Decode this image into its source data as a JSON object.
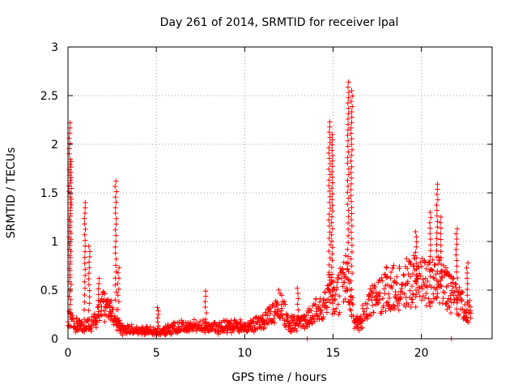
{
  "chart_data": {
    "type": "scatter",
    "title": "Day 261 of 2014, SRMTID for receiver lpal",
    "xlabel": "GPS time / hours",
    "ylabel": "SRMTID / TECUs",
    "xlim": [
      0,
      24
    ],
    "ylim": [
      0,
      3
    ],
    "xticks": [
      0,
      5,
      10,
      15,
      20
    ],
    "xtick_labels": [
      "0",
      "5",
      "10",
      "15",
      "20"
    ],
    "yticks": [
      0,
      0.5,
      1,
      1.5,
      2,
      2.5,
      3
    ],
    "ytick_labels": [
      "0",
      "0.5",
      "1",
      "1.5",
      "2",
      "2.5",
      "3"
    ],
    "grid": true,
    "marker": "+",
    "color": "#ff0000",
    "series": [
      {
        "name": "SRMTID",
        "description": "envelope of dense per-satellite samples",
        "baseline": {
          "x": [
            0,
            0.3,
            0.6,
            1.0,
            1.5,
            2.0,
            2.5,
            3.0,
            3.5,
            4.0,
            4.5,
            5.0,
            5.5,
            6.0,
            6.5,
            7.0,
            7.5,
            8.0,
            8.5,
            9.0,
            9.5,
            10.0,
            10.5,
            11.0,
            11.5,
            12.0,
            12.5,
            13.0,
            13.5,
            14.0,
            14.5,
            14.8,
            15.0,
            15.3,
            15.6,
            15.9,
            16.2,
            16.5,
            17.0,
            17.5,
            18.0,
            18.5,
            19.0,
            19.5,
            20.0,
            20.5,
            21.0,
            21.5,
            22.0,
            22.5,
            22.8
          ],
          "y": [
            0.22,
            0.16,
            0.14,
            0.13,
            0.18,
            0.35,
            0.25,
            0.1,
            0.09,
            0.08,
            0.08,
            0.07,
            0.09,
            0.11,
            0.13,
            0.12,
            0.14,
            0.12,
            0.11,
            0.12,
            0.13,
            0.12,
            0.15,
            0.18,
            0.25,
            0.38,
            0.15,
            0.16,
            0.2,
            0.28,
            0.32,
            0.55,
            0.4,
            0.45,
            0.6,
            0.55,
            0.18,
            0.15,
            0.35,
            0.42,
            0.5,
            0.55,
            0.55,
            0.6,
            0.58,
            0.55,
            0.6,
            0.5,
            0.4,
            0.3,
            0.25
          ]
        },
        "spikes": [
          {
            "x": 0.1,
            "peak": 2.22,
            "base": 0.25
          },
          {
            "x": 0.15,
            "peak": 1.82,
            "base": 0.3
          },
          {
            "x": 0.95,
            "peak": 1.4,
            "base": 0.2
          },
          {
            "x": 1.2,
            "peak": 0.95,
            "base": 0.2
          },
          {
            "x": 1.75,
            "peak": 0.62,
            "base": 0.25
          },
          {
            "x": 2.7,
            "peak": 1.62,
            "base": 0.3
          },
          {
            "x": 2.85,
            "peak": 0.73,
            "base": 0.3
          },
          {
            "x": 5.1,
            "peak": 0.32,
            "base": 0.08
          },
          {
            "x": 7.8,
            "peak": 0.49,
            "base": 0.12
          },
          {
            "x": 13.0,
            "peak": 0.52,
            "base": 0.15
          },
          {
            "x": 14.8,
            "peak": 2.23,
            "base": 0.5
          },
          {
            "x": 14.95,
            "peak": 2.1,
            "base": 0.4
          },
          {
            "x": 15.85,
            "peak": 2.64,
            "base": 0.5
          },
          {
            "x": 16.05,
            "peak": 2.55,
            "base": 0.4
          },
          {
            "x": 19.7,
            "peak": 1.1,
            "base": 0.5
          },
          {
            "x": 20.5,
            "peak": 1.3,
            "base": 0.55
          },
          {
            "x": 20.9,
            "peak": 1.59,
            "base": 0.6
          },
          {
            "x": 21.1,
            "peak": 1.25,
            "base": 0.6
          },
          {
            "x": 22.0,
            "peak": 1.13,
            "base": 0.4
          },
          {
            "x": 22.6,
            "peak": 0.78,
            "base": 0.3
          }
        ],
        "outliers": [
          {
            "x": 13.55,
            "y": 0.0
          },
          {
            "x": 21.7,
            "y": 0.0
          }
        ]
      }
    ]
  }
}
